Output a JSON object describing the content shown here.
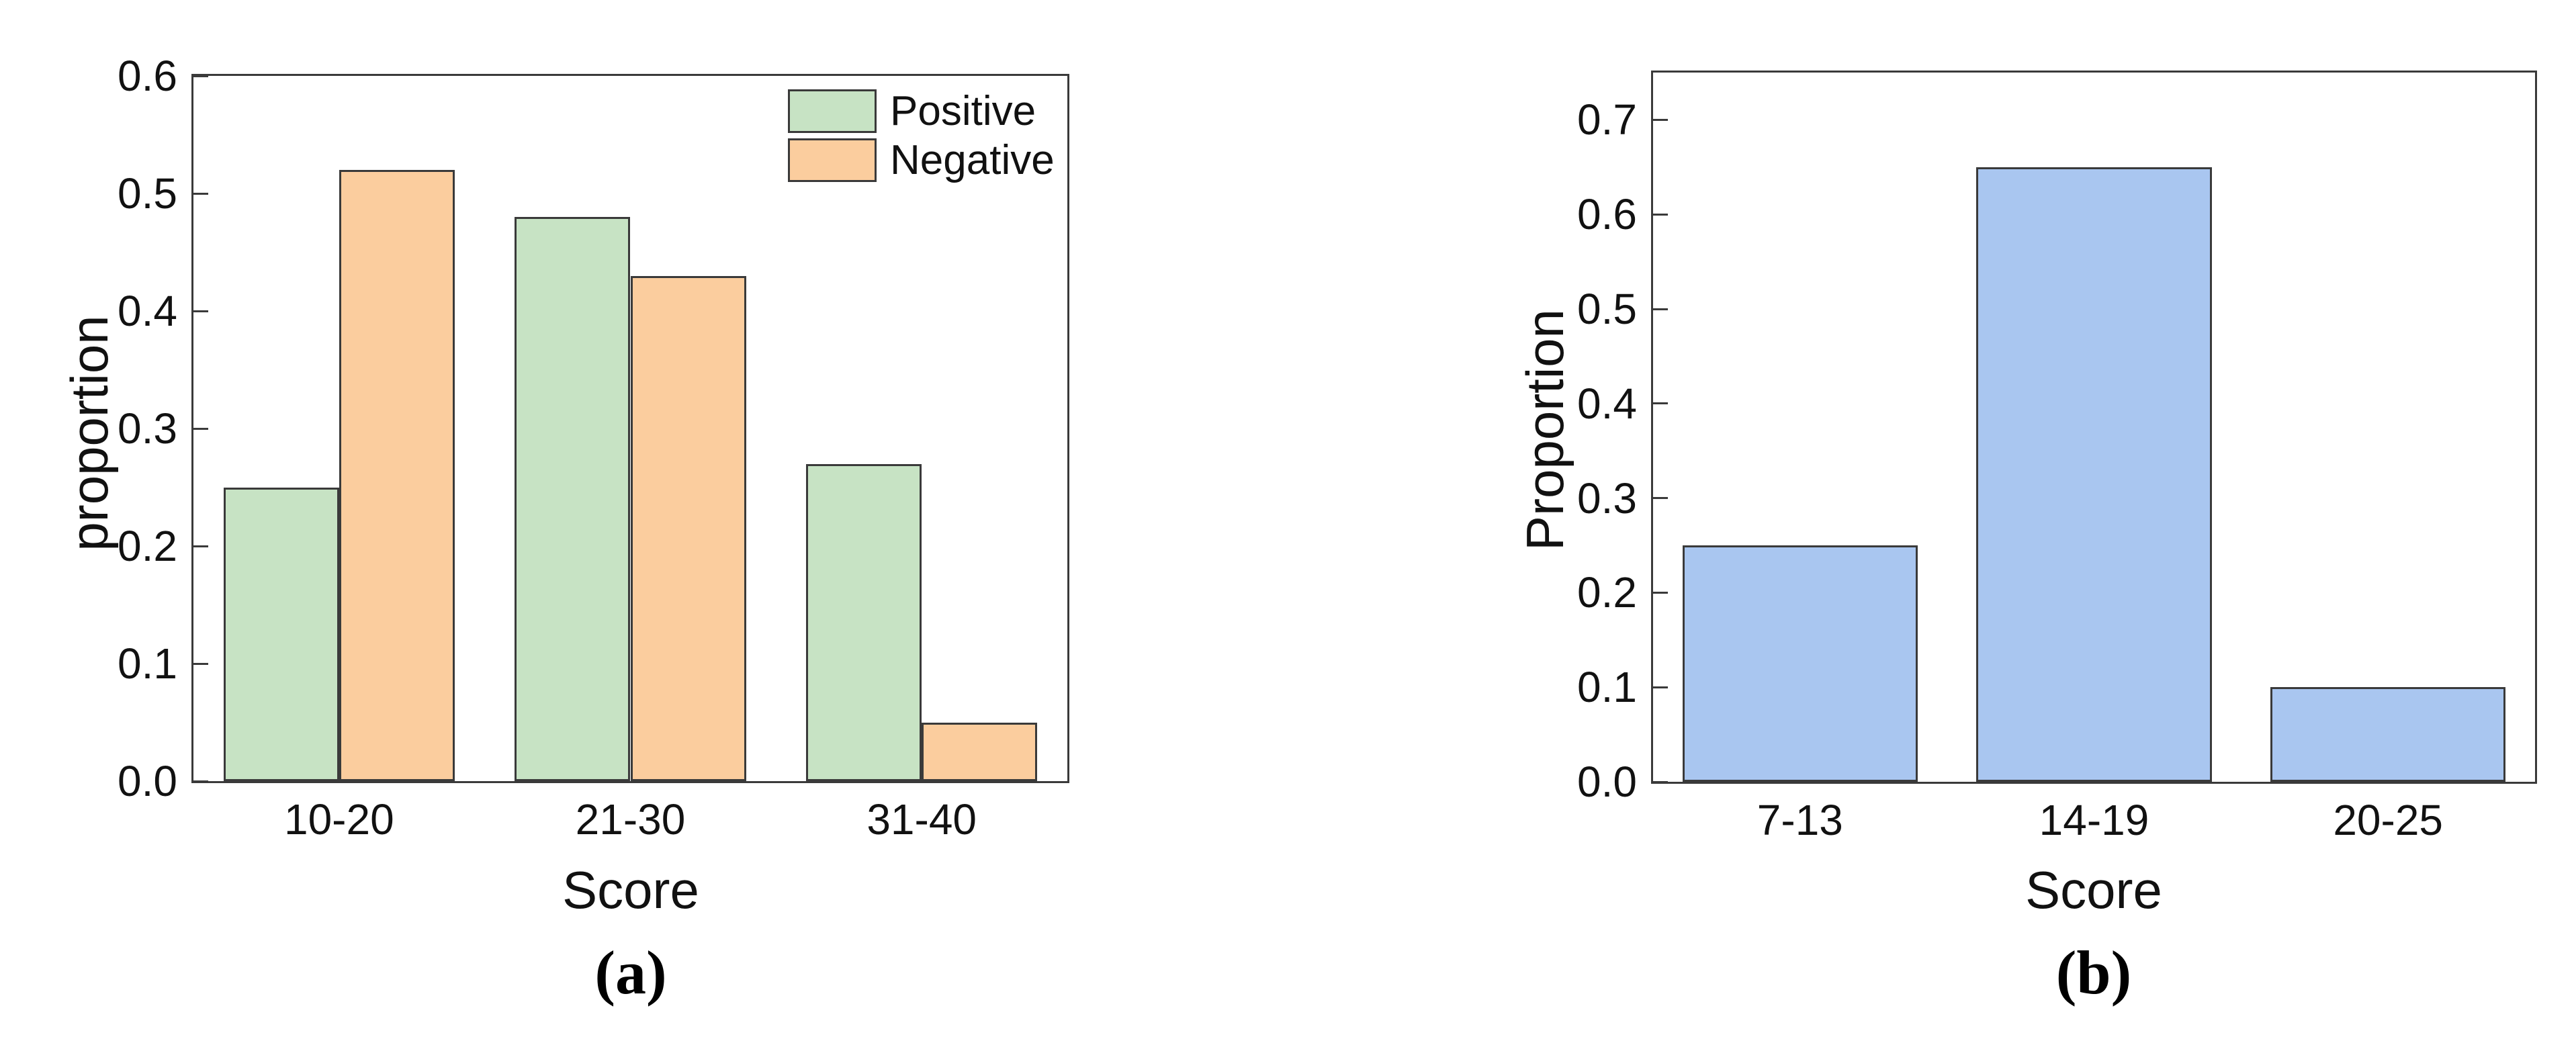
{
  "figure": {
    "background": "#ffffff",
    "text_color": "#111111",
    "axis_color": "#3a3a3a"
  },
  "chart_data": [
    {
      "type": "bar",
      "panel": "a",
      "caption": "(a)",
      "title": "",
      "xlabel": "Score",
      "ylabel": "proportion",
      "categories": [
        "10-20",
        "21-30",
        "31-40"
      ],
      "yticks": [
        "0.0",
        "0.1",
        "0.2",
        "0.3",
        "0.4",
        "0.5",
        "0.6"
      ],
      "ylim": [
        0,
        0.6
      ],
      "grid": false,
      "legend_position": "top-right",
      "bar_edge_color": "#3a3a3a",
      "series": [
        {
          "name": "Positive",
          "color": "#c7e3c4",
          "values": [
            0.25,
            0.48,
            0.27
          ]
        },
        {
          "name": "Negative",
          "color": "#fbcd9e",
          "values": [
            0.52,
            0.43,
            0.05
          ]
        }
      ]
    },
    {
      "type": "bar",
      "panel": "b",
      "caption": "(b)",
      "title": "",
      "xlabel": "Score",
      "ylabel": "Proportion",
      "categories": [
        "7-13",
        "14-19",
        "20-25"
      ],
      "yticks": [
        "0.0",
        "0.1",
        "0.2",
        "0.3",
        "0.4",
        "0.5",
        "0.6",
        "0.7"
      ],
      "ylim": [
        0,
        0.75
      ],
      "grid": false,
      "legend_position": "none",
      "bar_edge_color": "#3a3a3a",
      "series": [
        {
          "name": "",
          "color": "#a9c6f0",
          "values": [
            0.25,
            0.65,
            0.1
          ]
        }
      ]
    }
  ]
}
